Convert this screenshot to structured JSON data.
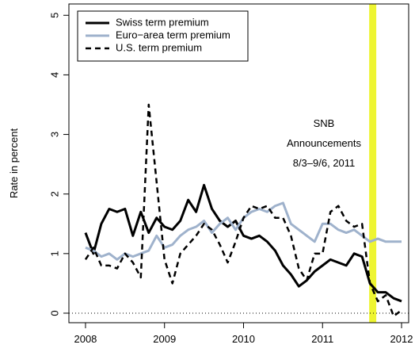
{
  "chart_data": {
    "type": "line",
    "y_label": "Rate in percent",
    "x": [
      2008.0,
      2008.1,
      2008.2,
      2008.3,
      2008.4,
      2008.5,
      2008.6,
      2008.7,
      2008.8,
      2008.9,
      2009.0,
      2009.1,
      2009.2,
      2009.3,
      2009.4,
      2009.5,
      2009.6,
      2009.7,
      2009.8,
      2009.9,
      2010.0,
      2010.1,
      2010.2,
      2010.3,
      2010.4,
      2010.5,
      2010.6,
      2010.7,
      2010.8,
      2010.9,
      2011.0,
      2011.1,
      2011.2,
      2011.3,
      2011.4,
      2011.5,
      2011.6,
      2011.7,
      2011.8,
      2011.9,
      2012.0
    ],
    "series": [
      {
        "name": "Swiss term premium",
        "color": "#000000",
        "dash": false,
        "values": [
          1.35,
          1.0,
          1.5,
          1.75,
          1.7,
          1.75,
          1.3,
          1.7,
          1.35,
          1.6,
          1.45,
          1.4,
          1.55,
          1.9,
          1.7,
          2.15,
          1.75,
          1.55,
          1.45,
          1.55,
          1.3,
          1.25,
          1.3,
          1.2,
          1.05,
          0.8,
          0.65,
          0.45,
          0.55,
          0.7,
          0.8,
          0.9,
          0.85,
          0.8,
          1.0,
          0.95,
          0.5,
          0.35,
          0.35,
          0.25,
          0.2
        ]
      },
      {
        "name": "Euro−area term premium",
        "color": "#9fb2cc",
        "dash": false,
        "values": [
          1.1,
          1.05,
          0.95,
          1.0,
          0.9,
          1.0,
          0.95,
          1.0,
          1.05,
          1.3,
          1.1,
          1.15,
          1.3,
          1.4,
          1.45,
          1.55,
          1.35,
          1.5,
          1.6,
          1.4,
          1.6,
          1.7,
          1.75,
          1.7,
          1.8,
          1.85,
          1.5,
          1.4,
          1.3,
          1.2,
          1.5,
          1.5,
          1.4,
          1.35,
          1.4,
          1.3,
          1.2,
          1.25,
          1.2,
          1.2,
          1.2
        ]
      },
      {
        "name": "U.S. term premium",
        "color": "#000000",
        "dash": true,
        "values": [
          0.9,
          1.1,
          0.8,
          0.8,
          0.75,
          1.0,
          0.85,
          0.6,
          3.5,
          2.2,
          0.9,
          0.5,
          1.0,
          1.15,
          1.3,
          1.5,
          1.4,
          1.15,
          0.85,
          1.2,
          1.6,
          1.8,
          1.75,
          1.8,
          1.6,
          1.6,
          1.3,
          0.75,
          0.55,
          1.0,
          1.0,
          1.7,
          1.8,
          1.55,
          1.45,
          1.5,
          0.5,
          0.2,
          0.3,
          -0.05,
          0.05
        ]
      }
    ],
    "xlim": [
      2007.79,
      2012.09
    ],
    "ylim": [
      -0.16,
      5.19
    ],
    "xticks": [
      2008,
      2009,
      2010,
      2011,
      2012
    ],
    "yticks": [
      0,
      1,
      2,
      3,
      4,
      5
    ],
    "reference_line": 0,
    "shade": {
      "xlim": [
        2011.59,
        2011.68
      ],
      "color": "#eef532"
    },
    "annotation": [
      "SNB",
      "Announcements",
      "8/3–9/6, 2011"
    ],
    "legend": "top-left"
  }
}
